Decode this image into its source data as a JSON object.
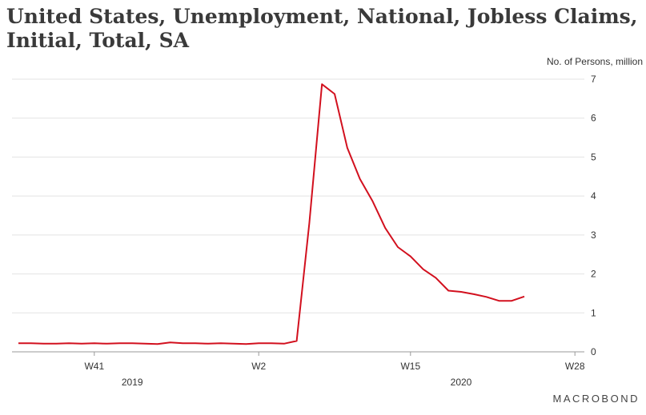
{
  "title": "United States, Unemployment, National, Jobless Claims, Initial, Total, SA",
  "brand": "MACROBOND",
  "chart_data": {
    "type": "line",
    "ylabel": "No. of Persons, million",
    "ylim": [
      0,
      7
    ],
    "y_ticks": [
      0,
      1,
      2,
      3,
      4,
      5,
      6,
      7
    ],
    "x_ticks": [
      "W41",
      "W2",
      "W15",
      "W28"
    ],
    "x_year_labels": [
      "2019",
      "2020"
    ],
    "grid": true,
    "axis_position": "right",
    "color": "#d2101e",
    "series": [
      {
        "values": [
          0.22,
          0.22,
          0.21,
          0.21,
          0.22,
          0.21,
          0.22,
          0.21,
          0.22,
          0.22,
          0.21,
          0.2,
          0.24,
          0.22,
          0.22,
          0.21,
          0.22,
          0.21,
          0.2,
          0.22,
          0.22,
          0.21,
          0.28,
          3.3,
          6.87,
          6.62,
          5.24,
          4.44,
          3.87,
          3.18,
          2.69,
          2.45,
          2.12,
          1.9,
          1.57,
          1.54,
          1.48,
          1.41,
          1.31,
          1.31,
          1.42
        ]
      }
    ]
  }
}
